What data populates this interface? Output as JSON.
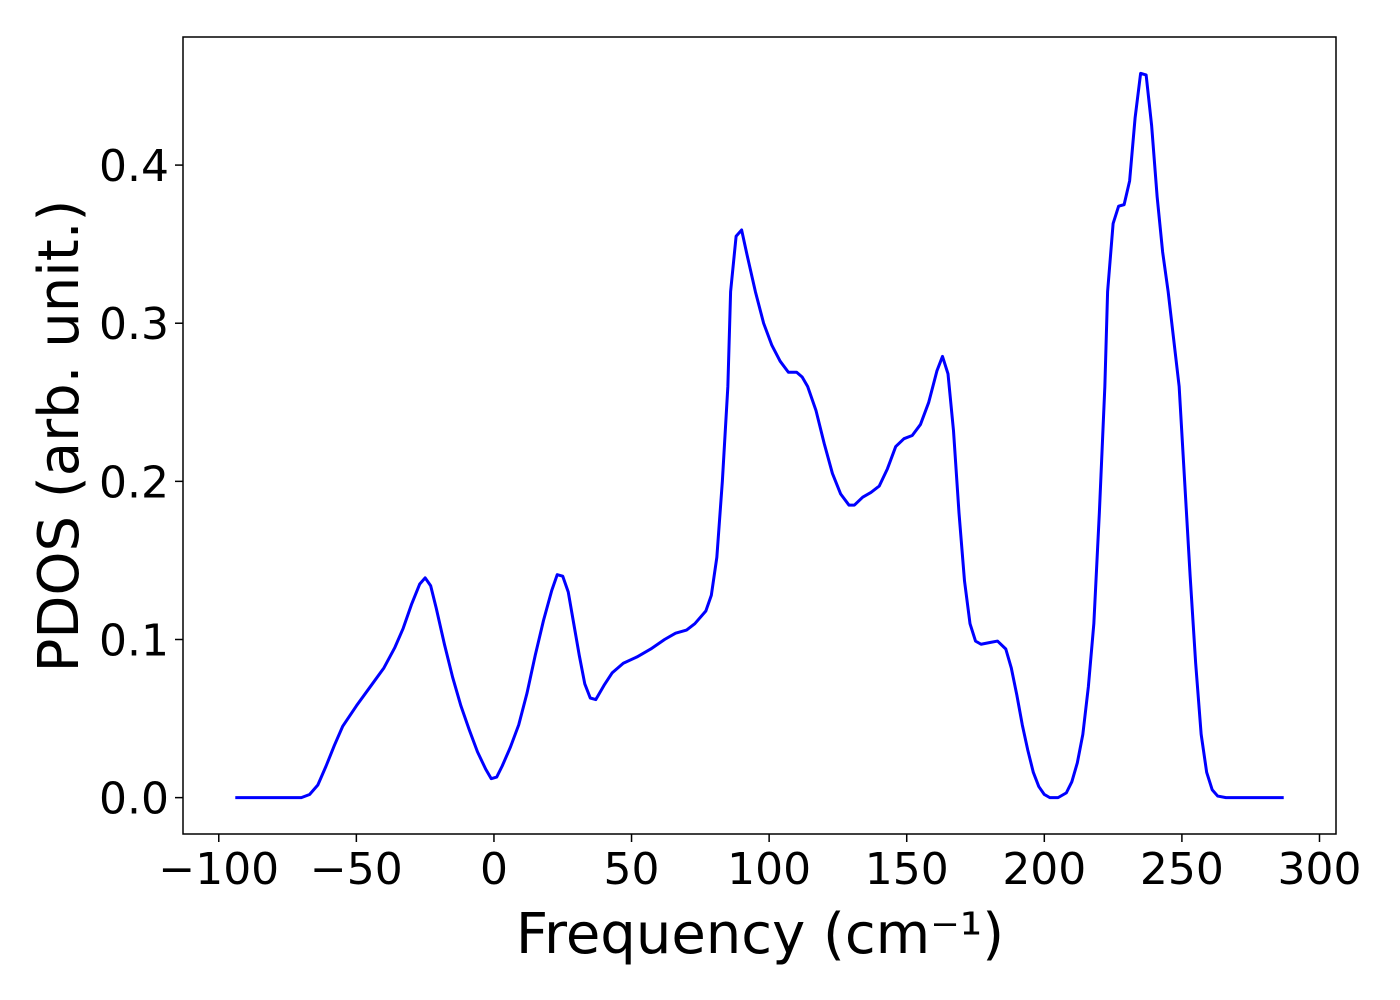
{
  "chart_data": {
    "type": "line",
    "xlabel": "Frequency (cm⁻¹)",
    "ylabel": "PDOS (arb. unit.)",
    "xlim": [
      -113,
      306
    ],
    "ylim": [
      -0.023,
      0.481
    ],
    "xticks": [
      {
        "value": -100,
        "label": "−100"
      },
      {
        "value": -50,
        "label": "−50"
      },
      0,
      50,
      100,
      150,
      200,
      250,
      300
    ],
    "yticks": [
      {
        "value": 0,
        "label": "0.0"
      },
      0.1,
      0.2,
      0.3,
      0.4
    ],
    "series": [
      {
        "color": "#0000ff",
        "x": [
          -94,
          -85,
          -75,
          -70,
          -67,
          -64,
          -61,
          -58,
          -55,
          -50,
          -45,
          -40,
          -36,
          -33,
          -30,
          -27,
          -25,
          -23,
          -21,
          -18,
          -15,
          -12,
          -9,
          -6,
          -3,
          -1,
          1,
          3,
          6,
          9,
          12,
          15,
          18,
          21,
          23,
          25,
          27,
          29,
          31,
          33,
          35,
          37,
          40,
          43,
          47,
          52,
          57,
          62,
          66,
          70,
          73,
          77,
          79,
          81,
          83,
          85,
          86,
          88,
          90,
          92,
          95,
          98,
          101,
          104,
          107,
          110,
          112,
          114,
          117,
          120,
          123,
          126,
          129,
          131,
          134,
          137,
          140,
          143,
          146,
          149,
          152,
          155,
          158,
          161,
          163,
          165,
          167,
          169,
          171,
          173,
          175,
          177,
          180,
          183,
          186,
          188,
          190,
          192,
          194,
          196,
          198,
          200,
          202,
          205,
          208,
          210,
          212,
          214,
          216,
          218,
          220,
          222,
          223,
          225,
          227,
          229,
          231,
          233,
          235,
          237,
          239,
          241,
          243,
          245,
          247,
          249,
          251,
          253,
          255,
          257,
          259,
          261,
          263,
          266,
          275,
          287
        ],
        "values": [
          0,
          0,
          0,
          0,
          0.002,
          0.008,
          0.02,
          0.033,
          0.045,
          0.058,
          0.07,
          0.082,
          0.095,
          0.107,
          0.122,
          0.135,
          0.139,
          0.134,
          0.12,
          0.097,
          0.076,
          0.058,
          0.043,
          0.029,
          0.018,
          0.012,
          0.013,
          0.02,
          0.032,
          0.046,
          0.066,
          0.09,
          0.112,
          0.131,
          0.141,
          0.14,
          0.13,
          0.11,
          0.09,
          0.072,
          0.063,
          0.062,
          0.071,
          0.079,
          0.085,
          0.089,
          0.094,
          0.1,
          0.104,
          0.106,
          0.11,
          0.118,
          0.128,
          0.152,
          0.2,
          0.26,
          0.32,
          0.355,
          0.359,
          0.343,
          0.32,
          0.3,
          0.286,
          0.276,
          0.269,
          0.269,
          0.266,
          0.26,
          0.245,
          0.224,
          0.205,
          0.192,
          0.185,
          0.185,
          0.19,
          0.193,
          0.197,
          0.208,
          0.222,
          0.227,
          0.229,
          0.236,
          0.25,
          0.27,
          0.279,
          0.268,
          0.232,
          0.18,
          0.137,
          0.11,
          0.099,
          0.097,
          0.098,
          0.099,
          0.094,
          0.082,
          0.065,
          0.046,
          0.03,
          0.016,
          0.007,
          0.002,
          0,
          0,
          0.003,
          0.01,
          0.022,
          0.04,
          0.07,
          0.11,
          0.18,
          0.26,
          0.32,
          0.363,
          0.374,
          0.375,
          0.39,
          0.43,
          0.458,
          0.457,
          0.425,
          0.38,
          0.345,
          0.32,
          0.29,
          0.26,
          0.2,
          0.14,
          0.085,
          0.04,
          0.016,
          0.005,
          0.001,
          0,
          0,
          0
        ]
      }
    ]
  }
}
